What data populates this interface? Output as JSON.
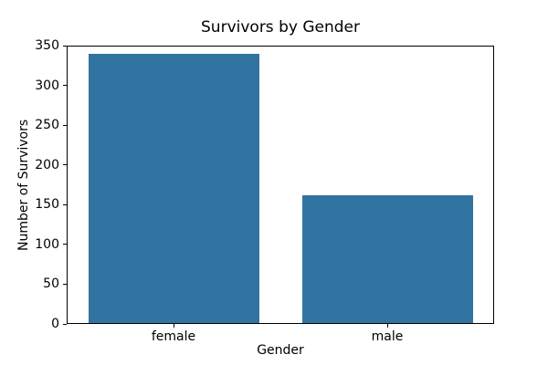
{
  "chart_data": {
    "type": "bar",
    "title": "Survivors by Gender",
    "xlabel": "Gender",
    "ylabel": "Number of Survivors",
    "categories": [
      "female",
      "male"
    ],
    "values": [
      339,
      161
    ],
    "ylim": [
      0,
      350
    ],
    "yticks": [
      0,
      50,
      100,
      150,
      200,
      250,
      300,
      350
    ],
    "bar_color": "#3274a1",
    "bar_width_fraction": 0.8,
    "grid": false,
    "legend": "none",
    "background_color": "#ffffff",
    "spine_color": "#000000"
  }
}
